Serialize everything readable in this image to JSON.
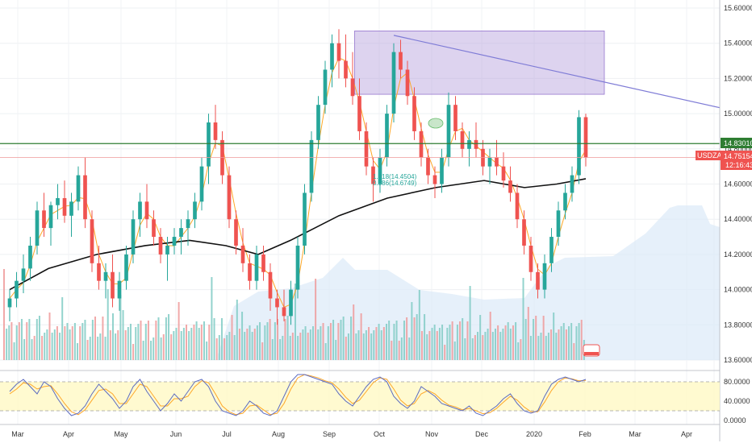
{
  "chart_data": {
    "type": "candlestick",
    "symbol": "USDZAR",
    "timer": "12:16:43",
    "price_axis": {
      "ticks": [
        "15.60000",
        "15.40000",
        "15.20000",
        "15.00000",
        "14.80000",
        "14.60000",
        "14.40000",
        "14.20000",
        "14.00000",
        "13.80000",
        "13.60000"
      ],
      "range": [
        13.57,
        15.66
      ]
    },
    "time_axis": {
      "labels": [
        "Mar",
        "Apr",
        "May",
        "Jun",
        "Jul",
        "Aug",
        "Sep",
        "Oct",
        "Nov",
        "Dec",
        "2020",
        "Feb",
        "Mar",
        "Apr"
      ]
    },
    "price_tags": [
      {
        "label": "14.83010",
        "value": 14.8301,
        "color": "#2e7d32"
      },
      {
        "label": "USDZAR",
        "value": 14.7515,
        "color": "#ef5350"
      },
      {
        "label": "14.75154",
        "value": 14.7515,
        "color": "#ef5350"
      },
      {
        "label": "12:16:43",
        "value": 14.7515,
        "color": "#ef5350"
      }
    ],
    "horizontal_line": {
      "value": 14.8301,
      "color": "#2e7d32"
    },
    "last_price_line": {
      "value": 14.7515,
      "color": "#ef9a9a"
    },
    "box": {
      "from_week": 51,
      "to_week": 86,
      "top": 15.47,
      "bottom": 15.11,
      "color": "#9575cd"
    },
    "trend_line": {
      "from": [
        56,
        15.445
      ],
      "to": [
        110,
        14.985
      ],
      "color": "#7e7bd6"
    },
    "fib_labels": [
      "1.618(14.4504)",
      "0.886(14.6749)"
    ],
    "candles_ohlc": [
      [
        13.9,
        14.0,
        13.82,
        13.95
      ],
      [
        13.95,
        14.1,
        13.9,
        14.05
      ],
      [
        14.05,
        14.2,
        13.98,
        14.12
      ],
      [
        14.12,
        14.3,
        14.05,
        14.25
      ],
      [
        14.25,
        14.5,
        14.2,
        14.45
      ],
      [
        14.45,
        14.55,
        14.3,
        14.35
      ],
      [
        14.35,
        14.5,
        14.25,
        14.48
      ],
      [
        14.48,
        14.6,
        14.4,
        14.52
      ],
      [
        14.52,
        14.62,
        14.38,
        14.42
      ],
      [
        14.42,
        14.55,
        14.3,
        14.5
      ],
      [
        14.5,
        14.7,
        14.45,
        14.65
      ],
      [
        14.65,
        14.75,
        14.35,
        14.4
      ],
      [
        14.4,
        14.45,
        14.1,
        14.15
      ],
      [
        14.15,
        14.25,
        14.0,
        14.05
      ],
      [
        14.05,
        14.15,
        13.95,
        14.1
      ],
      [
        14.1,
        14.2,
        13.9,
        13.95
      ],
      [
        13.95,
        14.1,
        13.88,
        14.05
      ],
      [
        14.05,
        14.25,
        14.0,
        14.2
      ],
      [
        14.2,
        14.45,
        14.15,
        14.4
      ],
      [
        14.4,
        14.55,
        14.3,
        14.5
      ],
      [
        14.5,
        14.6,
        14.35,
        14.4
      ],
      [
        14.4,
        14.45,
        14.25,
        14.3
      ],
      [
        14.3,
        14.35,
        14.15,
        14.2
      ],
      [
        14.2,
        14.3,
        14.05,
        14.25
      ],
      [
        14.25,
        14.35,
        14.2,
        14.3
      ],
      [
        14.3,
        14.4,
        14.2,
        14.35
      ],
      [
        14.35,
        14.45,
        14.25,
        14.4
      ],
      [
        14.4,
        14.55,
        14.35,
        14.5
      ],
      [
        14.5,
        14.75,
        14.45,
        14.7
      ],
      [
        14.7,
        15.0,
        14.6,
        14.95
      ],
      [
        14.95,
        15.05,
        14.8,
        14.85
      ],
      [
        14.85,
        14.9,
        14.6,
        14.65
      ],
      [
        14.65,
        14.7,
        14.35,
        14.4
      ],
      [
        14.4,
        14.45,
        14.2,
        14.25
      ],
      [
        14.25,
        14.35,
        14.1,
        14.15
      ],
      [
        14.15,
        14.2,
        14.0,
        14.05
      ],
      [
        14.05,
        14.25,
        14.0,
        14.2
      ],
      [
        14.2,
        14.25,
        14.05,
        14.1
      ],
      [
        14.1,
        14.15,
        13.88,
        13.95
      ],
      [
        13.95,
        14.0,
        13.8,
        13.9
      ],
      [
        13.9,
        14.0,
        13.82,
        13.85
      ],
      [
        13.85,
        14.05,
        13.8,
        14.0
      ],
      [
        14.0,
        14.3,
        13.95,
        14.25
      ],
      [
        14.25,
        14.6,
        14.2,
        14.55
      ],
      [
        14.55,
        14.9,
        14.5,
        14.85
      ],
      [
        14.85,
        15.1,
        14.8,
        15.05
      ],
      [
        15.05,
        15.3,
        15.0,
        15.25
      ],
      [
        15.25,
        15.45,
        15.15,
        15.4
      ],
      [
        15.4,
        15.48,
        15.2,
        15.3
      ],
      [
        15.3,
        15.45,
        15.15,
        15.2
      ],
      [
        15.2,
        15.35,
        15.05,
        15.1
      ],
      [
        15.1,
        15.2,
        14.85,
        14.9
      ],
      [
        14.9,
        14.95,
        14.65,
        14.7
      ],
      [
        14.7,
        14.75,
        14.5,
        14.6
      ],
      [
        14.6,
        14.8,
        14.55,
        14.75
      ],
      [
        14.75,
        15.05,
        14.7,
        15.0
      ],
      [
        15.0,
        15.4,
        14.95,
        15.35
      ],
      [
        15.35,
        15.42,
        15.2,
        15.25
      ],
      [
        15.25,
        15.3,
        15.05,
        15.1
      ],
      [
        15.1,
        15.15,
        14.85,
        14.9
      ],
      [
        14.9,
        14.95,
        14.7,
        14.75
      ],
      [
        14.75,
        14.8,
        14.6,
        14.65
      ],
      [
        14.65,
        14.7,
        14.52,
        14.6
      ],
      [
        14.6,
        14.8,
        14.55,
        14.75
      ],
      [
        14.75,
        15.12,
        14.7,
        15.05
      ],
      [
        15.05,
        15.1,
        14.85,
        14.9
      ],
      [
        14.9,
        14.95,
        14.75,
        14.8
      ],
      [
        14.8,
        14.9,
        14.7,
        14.85
      ],
      [
        14.85,
        14.95,
        14.75,
        14.8
      ],
      [
        14.8,
        14.85,
        14.65,
        14.7
      ],
      [
        14.7,
        14.8,
        14.6,
        14.75
      ],
      [
        14.75,
        14.85,
        14.65,
        14.7
      ],
      [
        14.7,
        14.78,
        14.58,
        14.62
      ],
      [
        14.62,
        14.7,
        14.5,
        14.55
      ],
      [
        14.55,
        14.6,
        14.35,
        14.4
      ],
      [
        14.4,
        14.45,
        14.2,
        14.25
      ],
      [
        14.25,
        14.3,
        14.05,
        14.1
      ],
      [
        14.1,
        14.15,
        13.95,
        14.0
      ],
      [
        14.0,
        14.2,
        13.95,
        14.15
      ],
      [
        14.15,
        14.35,
        14.1,
        14.3
      ],
      [
        14.3,
        14.5,
        14.25,
        14.45
      ],
      [
        14.45,
        14.6,
        14.4,
        14.55
      ],
      [
        14.55,
        14.7,
        14.5,
        14.65
      ],
      [
        14.65,
        15.02,
        14.6,
        14.98
      ],
      [
        14.98,
        15.0,
        14.7,
        14.75
      ]
    ],
    "volume": {
      "ymax": 1.0
    },
    "oscillator": {
      "ticks": [
        "80.0000",
        "40.0000",
        "0.0000"
      ],
      "range": [
        0,
        100
      ],
      "band": [
        20,
        80
      ],
      "k": [
        60,
        75,
        85,
        70,
        55,
        80,
        70,
        45,
        25,
        10,
        15,
        30,
        55,
        75,
        60,
        45,
        25,
        40,
        70,
        85,
        60,
        40,
        20,
        35,
        55,
        40,
        60,
        80,
        85,
        70,
        40,
        20,
        15,
        10,
        20,
        40,
        30,
        15,
        10,
        20,
        50,
        80,
        95,
        95,
        90,
        85,
        80,
        75,
        55,
        40,
        30,
        50,
        70,
        85,
        90,
        80,
        50,
        35,
        25,
        40,
        70,
        60,
        50,
        35,
        30,
        25,
        20,
        30,
        15,
        10,
        20,
        30,
        45,
        55,
        35,
        20,
        15,
        20,
        50,
        75,
        85,
        90,
        85,
        80,
        85
      ],
      "d": [
        55,
        65,
        78,
        75,
        65,
        70,
        72,
        55,
        35,
        18,
        12,
        22,
        42,
        62,
        65,
        55,
        35,
        35,
        55,
        75,
        70,
        50,
        30,
        30,
        45,
        45,
        50,
        70,
        82,
        78,
        55,
        30,
        18,
        12,
        15,
        30,
        32,
        22,
        12,
        15,
        35,
        65,
        88,
        95,
        92,
        88,
        82,
        78,
        65,
        48,
        35,
        42,
        60,
        78,
        88,
        85,
        65,
        42,
        30,
        35,
        55,
        62,
        55,
        42,
        32,
        28,
        22,
        25,
        20,
        14,
        16,
        25,
        38,
        50,
        42,
        28,
        18,
        18,
        38,
        62,
        80,
        88,
        86,
        82,
        83
      ]
    }
  }
}
